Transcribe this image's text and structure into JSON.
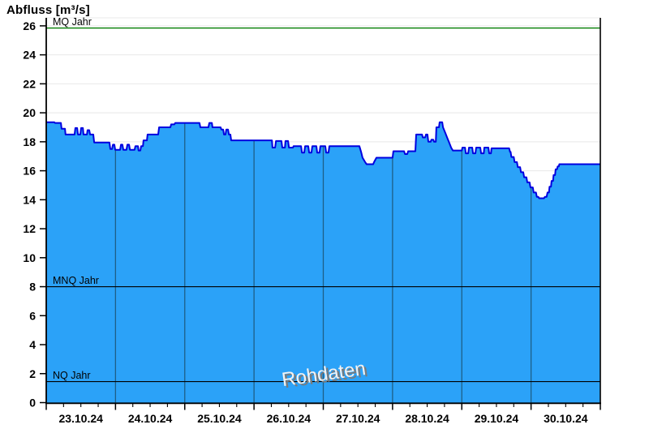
{
  "title": "Abfluss [m³/s]",
  "watermark": "Rohdaten",
  "colors": {
    "area_fill": "#2BA2F8",
    "area_stroke": "#0000E0",
    "h_grid": "#E8E8E8",
    "v_grid_on_area": "#1E5F87",
    "frame": "#000000",
    "mq_line": "#007C00",
    "ref_line": "#000000",
    "watermark_face": "#F2F2F2",
    "watermark_shadow": "#7A7A7A",
    "tick_label": "#000000"
  },
  "chart_data": {
    "type": "area",
    "title": "Abfluss [m³/s]",
    "ylabel": "Abfluss [m³/s]",
    "ylim": [
      0,
      26.5
    ],
    "yticks": [
      0,
      2,
      4,
      6,
      8,
      10,
      12,
      14,
      16,
      18,
      20,
      22,
      24,
      26
    ],
    "x_unit": "hours since 23.10.24 00:00",
    "x_total_hours": 192,
    "day_labels": [
      "23.10.24",
      "24.10.24",
      "25.10.24",
      "26.10.24",
      "27.10.24",
      "28.10.24",
      "29.10.24",
      "30.10.24"
    ],
    "major_tick_hours": 24,
    "minor_tick_hours": 6,
    "grid": {
      "horizontal": "light, behind area",
      "vertical": "dark, only inside area fill"
    },
    "legend_position": "none",
    "watermark": "Rohdaten",
    "reference_lines": [
      {
        "label": "MQ Jahr",
        "value": 25.85,
        "color": "#007C00"
      },
      {
        "label": "MNQ Jahr",
        "value": 8.0,
        "color": "#000000"
      },
      {
        "label": "NQ Jahr",
        "value": 1.45,
        "color": "#000000"
      }
    ],
    "series": [
      {
        "name": "Abfluss Rohdaten",
        "points": [
          [
            0,
            19.35
          ],
          [
            2.8,
            19.35
          ],
          [
            3,
            19.3
          ],
          [
            5.1,
            19.3
          ],
          [
            5.3,
            18.9
          ],
          [
            6.5,
            18.9
          ],
          [
            6.7,
            18.5
          ],
          [
            9.8,
            18.5
          ],
          [
            10.1,
            18.95
          ],
          [
            10.7,
            18.95
          ],
          [
            11,
            18.5
          ],
          [
            11.8,
            18.5
          ],
          [
            12.1,
            18.95
          ],
          [
            12.7,
            18.95
          ],
          [
            12.9,
            18.5
          ],
          [
            14.1,
            18.5
          ],
          [
            14.3,
            18.8
          ],
          [
            14.9,
            18.8
          ],
          [
            15.2,
            18.5
          ],
          [
            16.3,
            18.5
          ],
          [
            16.6,
            17.95
          ],
          [
            21.9,
            17.95
          ],
          [
            22.2,
            17.5
          ],
          [
            22.8,
            17.5
          ],
          [
            23.1,
            17.8
          ],
          [
            23.6,
            17.8
          ],
          [
            23.9,
            17.45
          ],
          [
            25.6,
            17.45
          ],
          [
            25.9,
            17.8
          ],
          [
            26.4,
            17.8
          ],
          [
            26.7,
            17.45
          ],
          [
            27.8,
            17.45
          ],
          [
            28.1,
            17.8
          ],
          [
            28.7,
            17.8
          ],
          [
            29,
            17.45
          ],
          [
            30.6,
            17.45
          ],
          [
            30.9,
            17.7
          ],
          [
            31.8,
            17.7
          ],
          [
            32,
            17.4
          ],
          [
            32.6,
            17.4
          ],
          [
            32.9,
            17.7
          ],
          [
            33.5,
            17.7
          ],
          [
            33.7,
            18.1
          ],
          [
            34.9,
            18.1
          ],
          [
            35.1,
            18.5
          ],
          [
            38.8,
            18.5
          ],
          [
            39.1,
            19
          ],
          [
            43,
            19
          ],
          [
            43.3,
            19.2
          ],
          [
            44.4,
            19.2
          ],
          [
            44.7,
            19.3
          ],
          [
            53.1,
            19.3
          ],
          [
            53.4,
            19
          ],
          [
            56.2,
            19
          ],
          [
            56.5,
            19.3
          ],
          [
            57.4,
            19.3
          ],
          [
            57.6,
            19
          ],
          [
            60.4,
            19
          ],
          [
            60.7,
            18.85
          ],
          [
            61.3,
            18.85
          ],
          [
            61.6,
            18.5
          ],
          [
            62.1,
            18.5
          ],
          [
            62.4,
            18.85
          ],
          [
            63,
            18.85
          ],
          [
            63.3,
            18.5
          ],
          [
            63.8,
            18.5
          ],
          [
            64.1,
            18.1
          ],
          [
            78.2,
            18.1
          ],
          [
            78.4,
            17.6
          ],
          [
            79.3,
            17.6
          ],
          [
            79.6,
            18.05
          ],
          [
            81.5,
            18.05
          ],
          [
            81.8,
            17.6
          ],
          [
            82.7,
            17.6
          ],
          [
            82.9,
            18.05
          ],
          [
            83.8,
            18.05
          ],
          [
            84.1,
            17.6
          ],
          [
            85.5,
            17.6
          ],
          [
            85.7,
            17.7
          ],
          [
            88.3,
            17.7
          ],
          [
            88.6,
            17.25
          ],
          [
            89.4,
            17.25
          ],
          [
            89.7,
            17.7
          ],
          [
            90.8,
            17.7
          ],
          [
            91.1,
            17.25
          ],
          [
            91.9,
            17.25
          ],
          [
            92.2,
            17.7
          ],
          [
            93.6,
            17.7
          ],
          [
            93.9,
            17.25
          ],
          [
            94.7,
            17.25
          ],
          [
            95,
            17.7
          ],
          [
            96.7,
            17.7
          ],
          [
            97,
            17.25
          ],
          [
            97.8,
            17.25
          ],
          [
            98.1,
            17.7
          ],
          [
            108.5,
            17.7
          ],
          [
            109.1,
            17.3
          ],
          [
            109.6,
            16.9
          ],
          [
            110.5,
            16.6
          ],
          [
            111,
            16.45
          ],
          [
            113.3,
            16.45
          ],
          [
            113.6,
            16.6
          ],
          [
            114.4,
            16.9
          ],
          [
            120,
            16.9
          ],
          [
            120.3,
            17.35
          ],
          [
            124,
            17.35
          ],
          [
            124.3,
            17.15
          ],
          [
            125.1,
            17.15
          ],
          [
            125.4,
            17.35
          ],
          [
            127.9,
            17.35
          ],
          [
            128.2,
            18.5
          ],
          [
            130.2,
            18.5
          ],
          [
            130.5,
            18.3
          ],
          [
            131.3,
            18.3
          ],
          [
            131.6,
            18.5
          ],
          [
            132.1,
            18.5
          ],
          [
            132.4,
            18
          ],
          [
            133.2,
            18
          ],
          [
            133.5,
            18.15
          ],
          [
            134.1,
            18.15
          ],
          [
            134.4,
            18
          ],
          [
            135,
            18
          ],
          [
            135.2,
            19
          ],
          [
            136.1,
            19
          ],
          [
            136.3,
            19.35
          ],
          [
            137.2,
            19.35
          ],
          [
            137.5,
            19
          ],
          [
            138.3,
            18.6
          ],
          [
            138.9,
            18.3
          ],
          [
            139.7,
            17.9
          ],
          [
            140.3,
            17.6
          ],
          [
            140.9,
            17.4
          ],
          [
            144,
            17.4
          ],
          [
            144.2,
            17.6
          ],
          [
            145.1,
            17.6
          ],
          [
            145.4,
            17.2
          ],
          [
            146.2,
            17.2
          ],
          [
            146.5,
            17.6
          ],
          [
            147.6,
            17.6
          ],
          [
            147.9,
            17.2
          ],
          [
            148.7,
            17.2
          ],
          [
            149,
            17.6
          ],
          [
            150.4,
            17.6
          ],
          [
            150.7,
            17.2
          ],
          [
            151.6,
            17.2
          ],
          [
            151.8,
            17.6
          ],
          [
            153.2,
            17.6
          ],
          [
            153.5,
            17.2
          ],
          [
            154.1,
            17.2
          ],
          [
            154.3,
            17.55
          ],
          [
            160.4,
            17.55
          ],
          [
            160.7,
            17.3
          ],
          [
            160.9,
            17.3
          ],
          [
            161.2,
            16.95
          ],
          [
            162,
            16.95
          ],
          [
            162.3,
            16.6
          ],
          [
            163.1,
            16.6
          ],
          [
            163.4,
            16.25
          ],
          [
            164.2,
            16.25
          ],
          [
            164.5,
            15.9
          ],
          [
            165.3,
            15.9
          ],
          [
            165.6,
            15.55
          ],
          [
            166.4,
            15.55
          ],
          [
            166.7,
            15.2
          ],
          [
            167.5,
            15.2
          ],
          [
            167.8,
            14.85
          ],
          [
            168.6,
            14.85
          ],
          [
            168.9,
            14.5
          ],
          [
            169.7,
            14.5
          ],
          [
            170,
            14.2
          ],
          [
            170.5,
            14.2
          ],
          [
            170.8,
            14.1
          ],
          [
            172.5,
            14.1
          ],
          [
            172.8,
            14.2
          ],
          [
            173.4,
            14.2
          ],
          [
            173.7,
            14.5
          ],
          [
            174.2,
            14.5
          ],
          [
            174.4,
            14.9
          ],
          [
            174.9,
            14.9
          ],
          [
            175.1,
            15.3
          ],
          [
            175.6,
            15.3
          ],
          [
            175.8,
            15.7
          ],
          [
            176.3,
            15.7
          ],
          [
            176.5,
            16.1
          ],
          [
            177,
            16.1
          ],
          [
            177.2,
            16.3
          ],
          [
            177.6,
            16.3
          ],
          [
            177.8,
            16.45
          ],
          [
            192,
            16.45
          ]
        ]
      }
    ]
  }
}
